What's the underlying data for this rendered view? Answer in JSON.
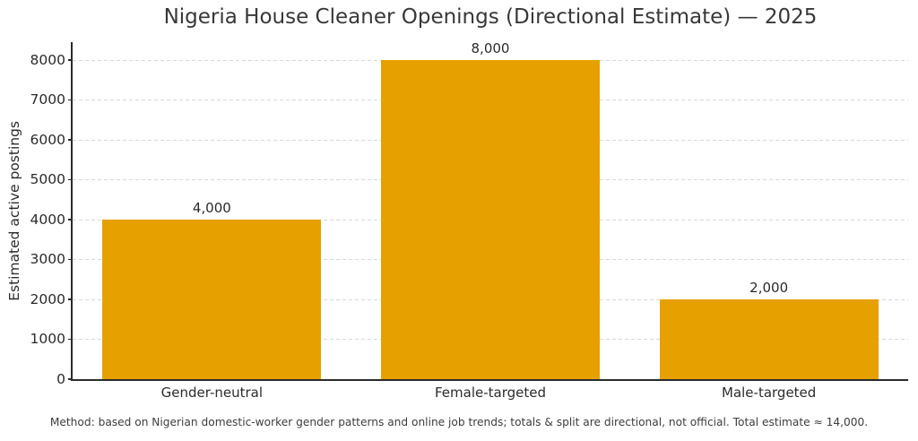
{
  "title": "Nigeria House Cleaner Openings (Directional Estimate) — 2025",
  "footnote": "Method: based on Nigerian domestic-worker gender patterns and online job trends; totals & split are directional, not official. Total estimate ≈ 14,000.",
  "chart_data": {
    "type": "bar",
    "title": "Nigeria House Cleaner Openings (Directional Estimate) — 2025",
    "categories": [
      "Gender-neutral",
      "Female-targeted",
      "Male-targeted"
    ],
    "values": [
      4000,
      8000,
      2000
    ],
    "value_labels": [
      "4,000",
      "8,000",
      "2,000"
    ],
    "xlabel": "",
    "ylabel": "Estimated active postings",
    "ylim": [
      0,
      8450
    ],
    "yticks": [
      0,
      1000,
      2000,
      3000,
      4000,
      5000,
      6000,
      7000,
      8000
    ],
    "grid": "horizontal dashed",
    "legend": "none",
    "bar_width_frac": 0.785,
    "annotation": "Method: based on Nigerian domestic-worker gender patterns and online job trends; totals & split are directional, not official. Total estimate ≈ 14,000."
  },
  "colors": {
    "bar": "#e6a000",
    "grid": "#d8d8d8",
    "axis": "#2b2b2b",
    "text": "#2b2b2b",
    "background": "#ffffff"
  }
}
